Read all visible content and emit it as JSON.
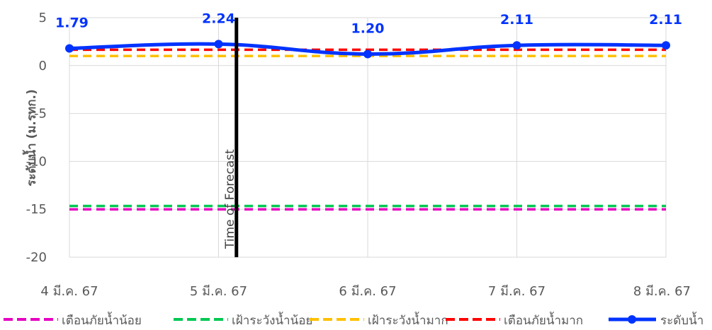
{
  "chart_data": {
    "type": "line",
    "ylabel": "ระดับน้ำ (ม.รทก.)",
    "ylim": [
      -20,
      5
    ],
    "yticks": [
      5,
      0,
      -5,
      -10,
      -15,
      -20
    ],
    "categories": [
      "4 มี.ค. 67",
      "5 มี.ค. 67",
      "6 มี.ค. 67",
      "7 มี.ค. 67",
      "8 มี.ค. 67"
    ],
    "grid": true,
    "legend_position": "bottom",
    "series": [
      {
        "name": "เตือนภัยน้ำน้อย",
        "values": [
          -15.0,
          -15.0,
          -15.0,
          -15.0,
          -15.0
        ],
        "color": "#e600c2",
        "style": "dashed"
      },
      {
        "name": "เฝ้าระวังน้ำน้อย",
        "values": [
          -14.65,
          -14.65,
          -14.65,
          -14.65,
          -14.65
        ],
        "color": "#00c853",
        "style": "dashed"
      },
      {
        "name": "เฝ้าระวังน้ำมาก",
        "values": [
          1.0,
          1.0,
          1.0,
          1.0,
          1.0
        ],
        "color": "#ffc000",
        "style": "dashed"
      },
      {
        "name": "เตือนภัยน้ำมาก",
        "values": [
          1.65,
          1.65,
          1.65,
          1.65,
          1.65
        ],
        "color": "#ff0000",
        "style": "dashed"
      },
      {
        "name": "ระดับน้ำ",
        "values": [
          1.79,
          2.24,
          1.2,
          2.11,
          2.11
        ],
        "labels": [
          "1.79",
          "2.24",
          "1.20",
          "2.11",
          "2.11"
        ],
        "color": "#0033ff",
        "style": "solid-markers"
      }
    ],
    "annotations": [
      {
        "text": "Time of Forecast",
        "x_category_index": 1.12
      }
    ]
  }
}
